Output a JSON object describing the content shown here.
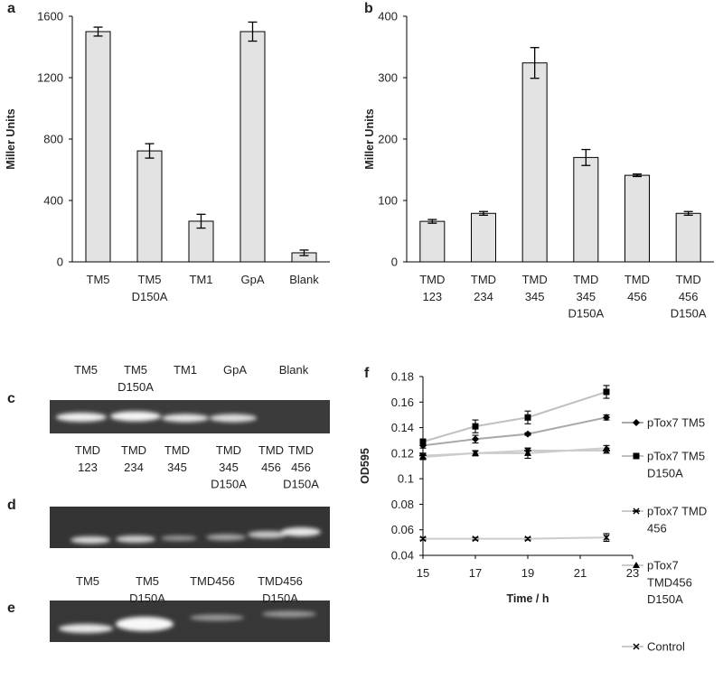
{
  "chart_data": [
    {
      "type": "bar",
      "label": "a",
      "y_label": "Miller Units",
      "categories": [
        "TM5",
        "TM5\nD150A",
        "TM1",
        "GpA",
        "Blank"
      ],
      "values": [
        1500,
        723,
        265,
        1500,
        59
      ],
      "errors": [
        29,
        47,
        45,
        62,
        18
      ],
      "color": "#e3e3e3",
      "ylim": [
        0,
        1600
      ],
      "yticks": [
        0,
        400,
        800,
        1200,
        1600
      ]
    },
    {
      "type": "bar",
      "label": "b",
      "y_label": "Miller Units",
      "categories": [
        "TMD\n123",
        "TMD\n234",
        "TMD\n345",
        "TMD\n345\nD150A",
        "TMD\n456",
        "TMD\n456\nD150A"
      ],
      "values": [
        66,
        79,
        324,
        170,
        141,
        79
      ],
      "errors": [
        3,
        3,
        25,
        13,
        2,
        3
      ],
      "color": "#e3e3e3",
      "ylim": [
        0,
        400
      ],
      "yticks": [
        0,
        100,
        200,
        300,
        400
      ]
    },
    {
      "type": "line",
      "label": "f",
      "y_label": "OD595",
      "x_label": "Time / h",
      "x": [
        15,
        17,
        19,
        22
      ],
      "xlim": [
        15,
        23
      ],
      "xticks": [
        15,
        17,
        19,
        21,
        23
      ],
      "ylim": [
        0.04,
        0.18
      ],
      "yticks": [
        0.04,
        0.06,
        0.08,
        0.1,
        0.12,
        0.14,
        0.16,
        0.18
      ],
      "series": [
        {
          "name": "pTox7 TM5",
          "marker": "diamond",
          "color": "#a8a8a8",
          "values": [
            0.126,
            0.131,
            0.135,
            0.148
          ],
          "errors": [
            0.002,
            0.003,
            0.001,
            0.002
          ]
        },
        {
          "name": "pTox7 TM5\nD150A",
          "marker": "square",
          "color": "#c0c0c0",
          "values": [
            0.129,
            0.141,
            0.148,
            0.168
          ],
          "errors": [
            0.002,
            0.005,
            0.005,
            0.005
          ]
        },
        {
          "name": "pTox7 TMD\n456",
          "marker": "star",
          "color": "#cccccc",
          "values": [
            0.118,
            0.12,
            0.122,
            0.122
          ],
          "errors": [
            0.002,
            0.002,
            0.002,
            0.002
          ]
        },
        {
          "name": "pTox7\nTMD456\nD150A",
          "marker": "triangle",
          "color": "#cccccc",
          "values": [
            0.117,
            0.12,
            0.12,
            0.124
          ],
          "errors": [
            0.002,
            0.002,
            0.004,
            0.002
          ]
        },
        {
          "name": "Control",
          "marker": "cross",
          "color": "#cccccc",
          "values": [
            0.053,
            0.053,
            0.053,
            0.054
          ],
          "errors": [
            0.001,
            0.001,
            0.001,
            0.003
          ]
        }
      ]
    }
  ],
  "gels": [
    {
      "label": "c",
      "lanes": [
        "TM5",
        "TM5\nD150A",
        "TM1",
        "GpA",
        "Blank"
      ]
    },
    {
      "label": "d",
      "lanes": [
        "TMD\n123",
        "TMD\n234",
        "TMD\n345",
        "TMD\n345\nD150A",
        "TMD\n456",
        "TMD\n456\nD150A"
      ]
    },
    {
      "label": "e",
      "lanes": [
        "TM5",
        "TM5\nD150A",
        "TMD456",
        "TMD456\nD150A"
      ]
    }
  ]
}
